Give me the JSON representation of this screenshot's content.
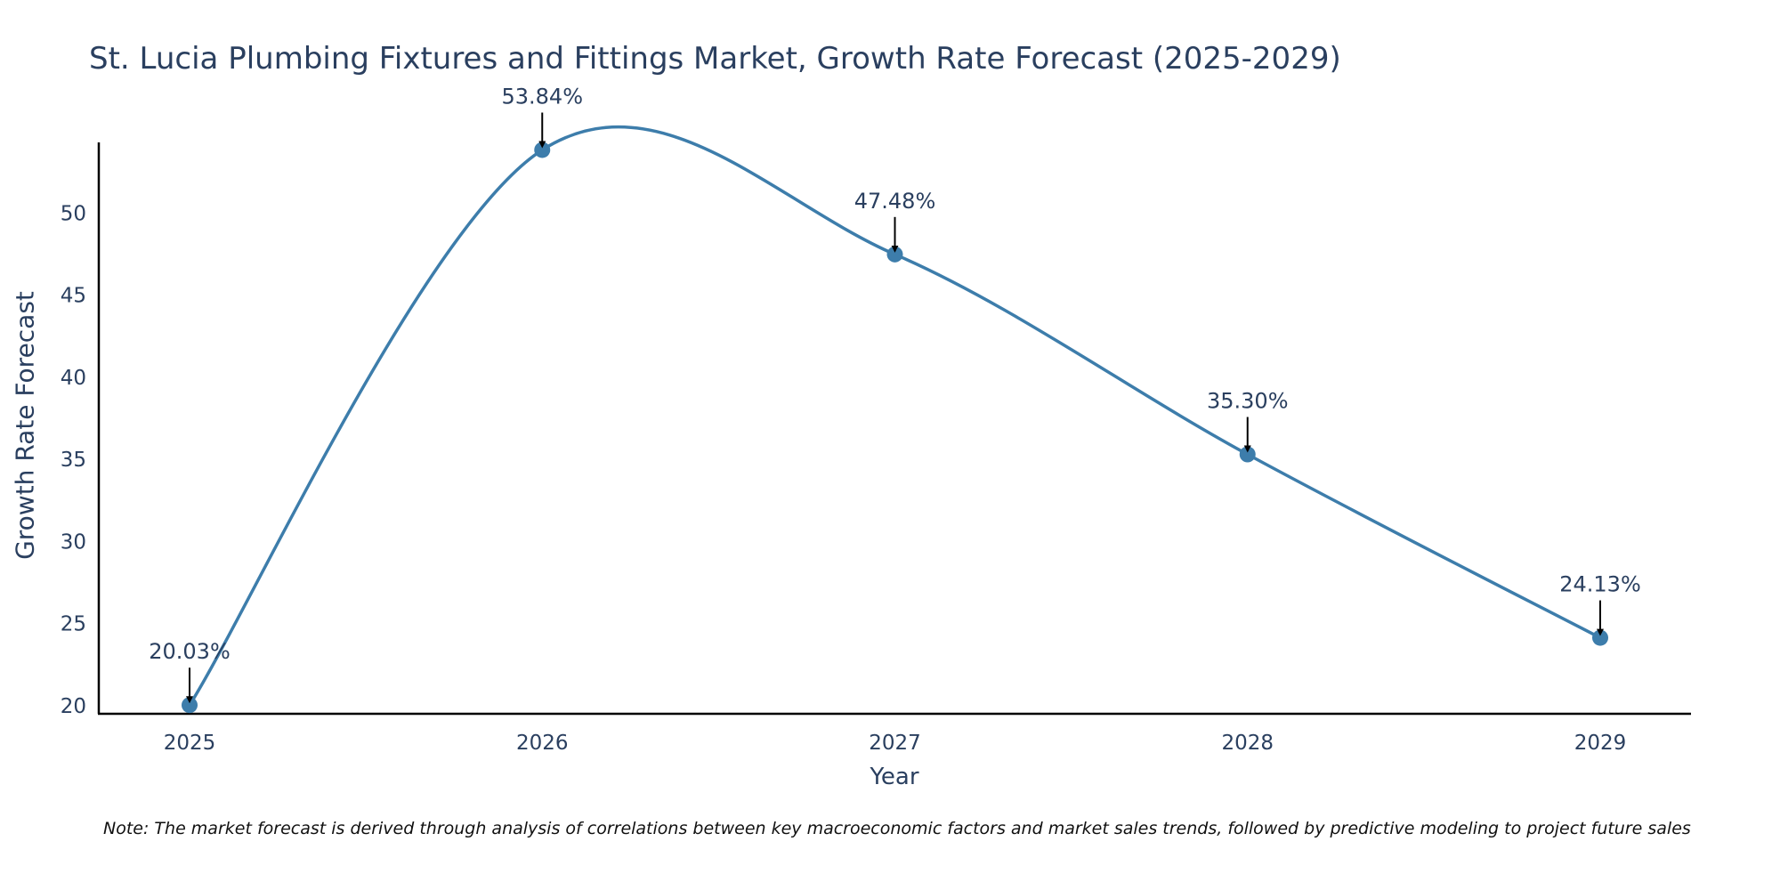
{
  "chart_data": {
    "type": "line",
    "title": "St. Lucia Plumbing Fixtures and Fittings Market, Growth Rate Forecast (2025-2029)",
    "xlabel": "Year",
    "ylabel": "Growth Rate Forecast",
    "categories": [
      "2025",
      "2026",
      "2027",
      "2028",
      "2029"
    ],
    "values": [
      20.03,
      53.84,
      47.48,
      35.3,
      24.13
    ],
    "data_labels": [
      "20.03%",
      "53.84%",
      "47.48%",
      "35.30%",
      "24.13%"
    ],
    "y_ticks": [
      20,
      25,
      30,
      35,
      40,
      45,
      50
    ],
    "ylim": [
      19.5,
      54.3
    ],
    "grid": false,
    "line_shape": "spline",
    "line_color": "#3d7dab",
    "marker_color": "#3d7dab"
  },
  "note": "Note: The market forecast is derived through analysis of correlations between key macroeconomic factors and market sales trends, followed by predictive modeling to project future sales"
}
